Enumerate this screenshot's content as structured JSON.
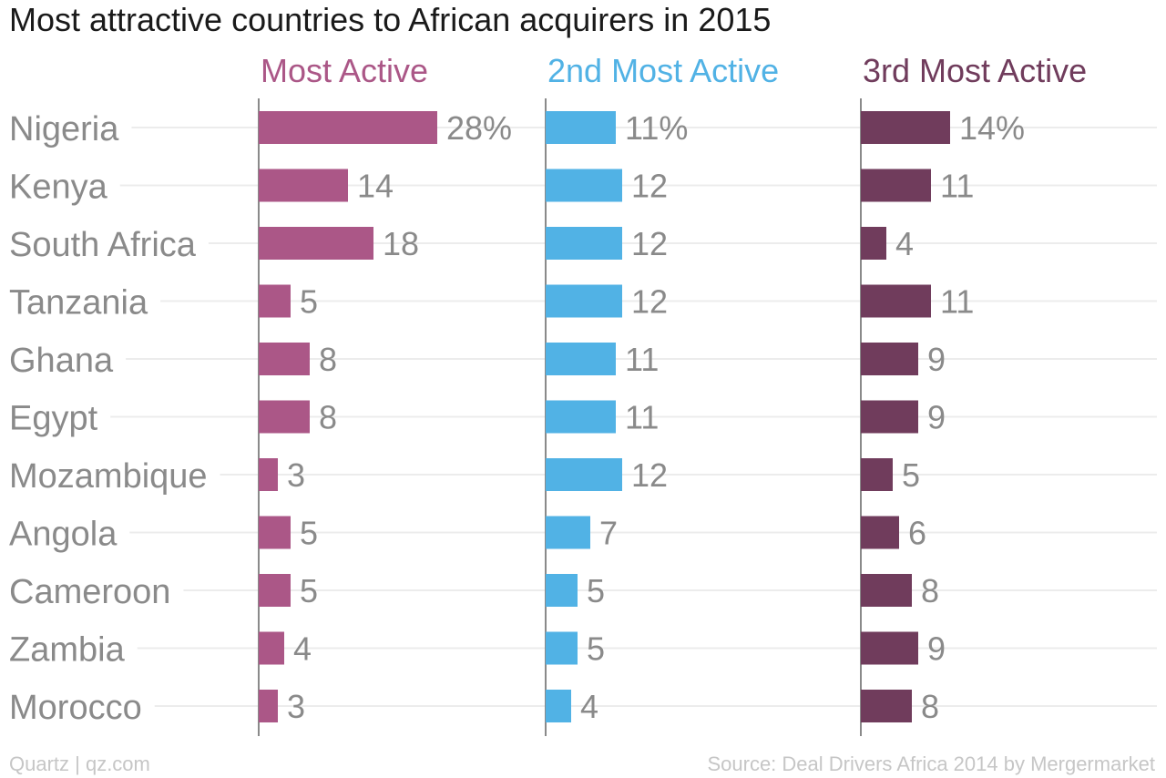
{
  "chart_data": {
    "type": "bar",
    "orientation": "horizontal",
    "title": "Most attractive countries to African acquirers in 2015",
    "categories": [
      "Nigeria",
      "Kenya",
      "South Africa",
      "Tanzania",
      "Ghana",
      "Egypt",
      "Mozambique",
      "Angola",
      "Cameroon",
      "Zambia",
      "Morocco"
    ],
    "series": [
      {
        "name": "Most Active",
        "color": "#ab5787",
        "values": [
          28,
          14,
          18,
          5,
          8,
          8,
          3,
          5,
          5,
          4,
          3
        ]
      },
      {
        "name": "2nd Most Active",
        "color": "#51b2e5",
        "values": [
          11,
          12,
          12,
          12,
          11,
          11,
          12,
          7,
          5,
          5,
          4
        ]
      },
      {
        "name": "3rd Most Active",
        "color": "#703c5c",
        "values": [
          14,
          11,
          4,
          11,
          9,
          9,
          5,
          6,
          8,
          9,
          8
        ]
      }
    ],
    "value_unit_first_label": "%",
    "grid": true
  },
  "footer": {
    "left": "Quartz | qz.com",
    "right": "Source: Deal Drivers Africa 2014 by Mergermarket"
  }
}
